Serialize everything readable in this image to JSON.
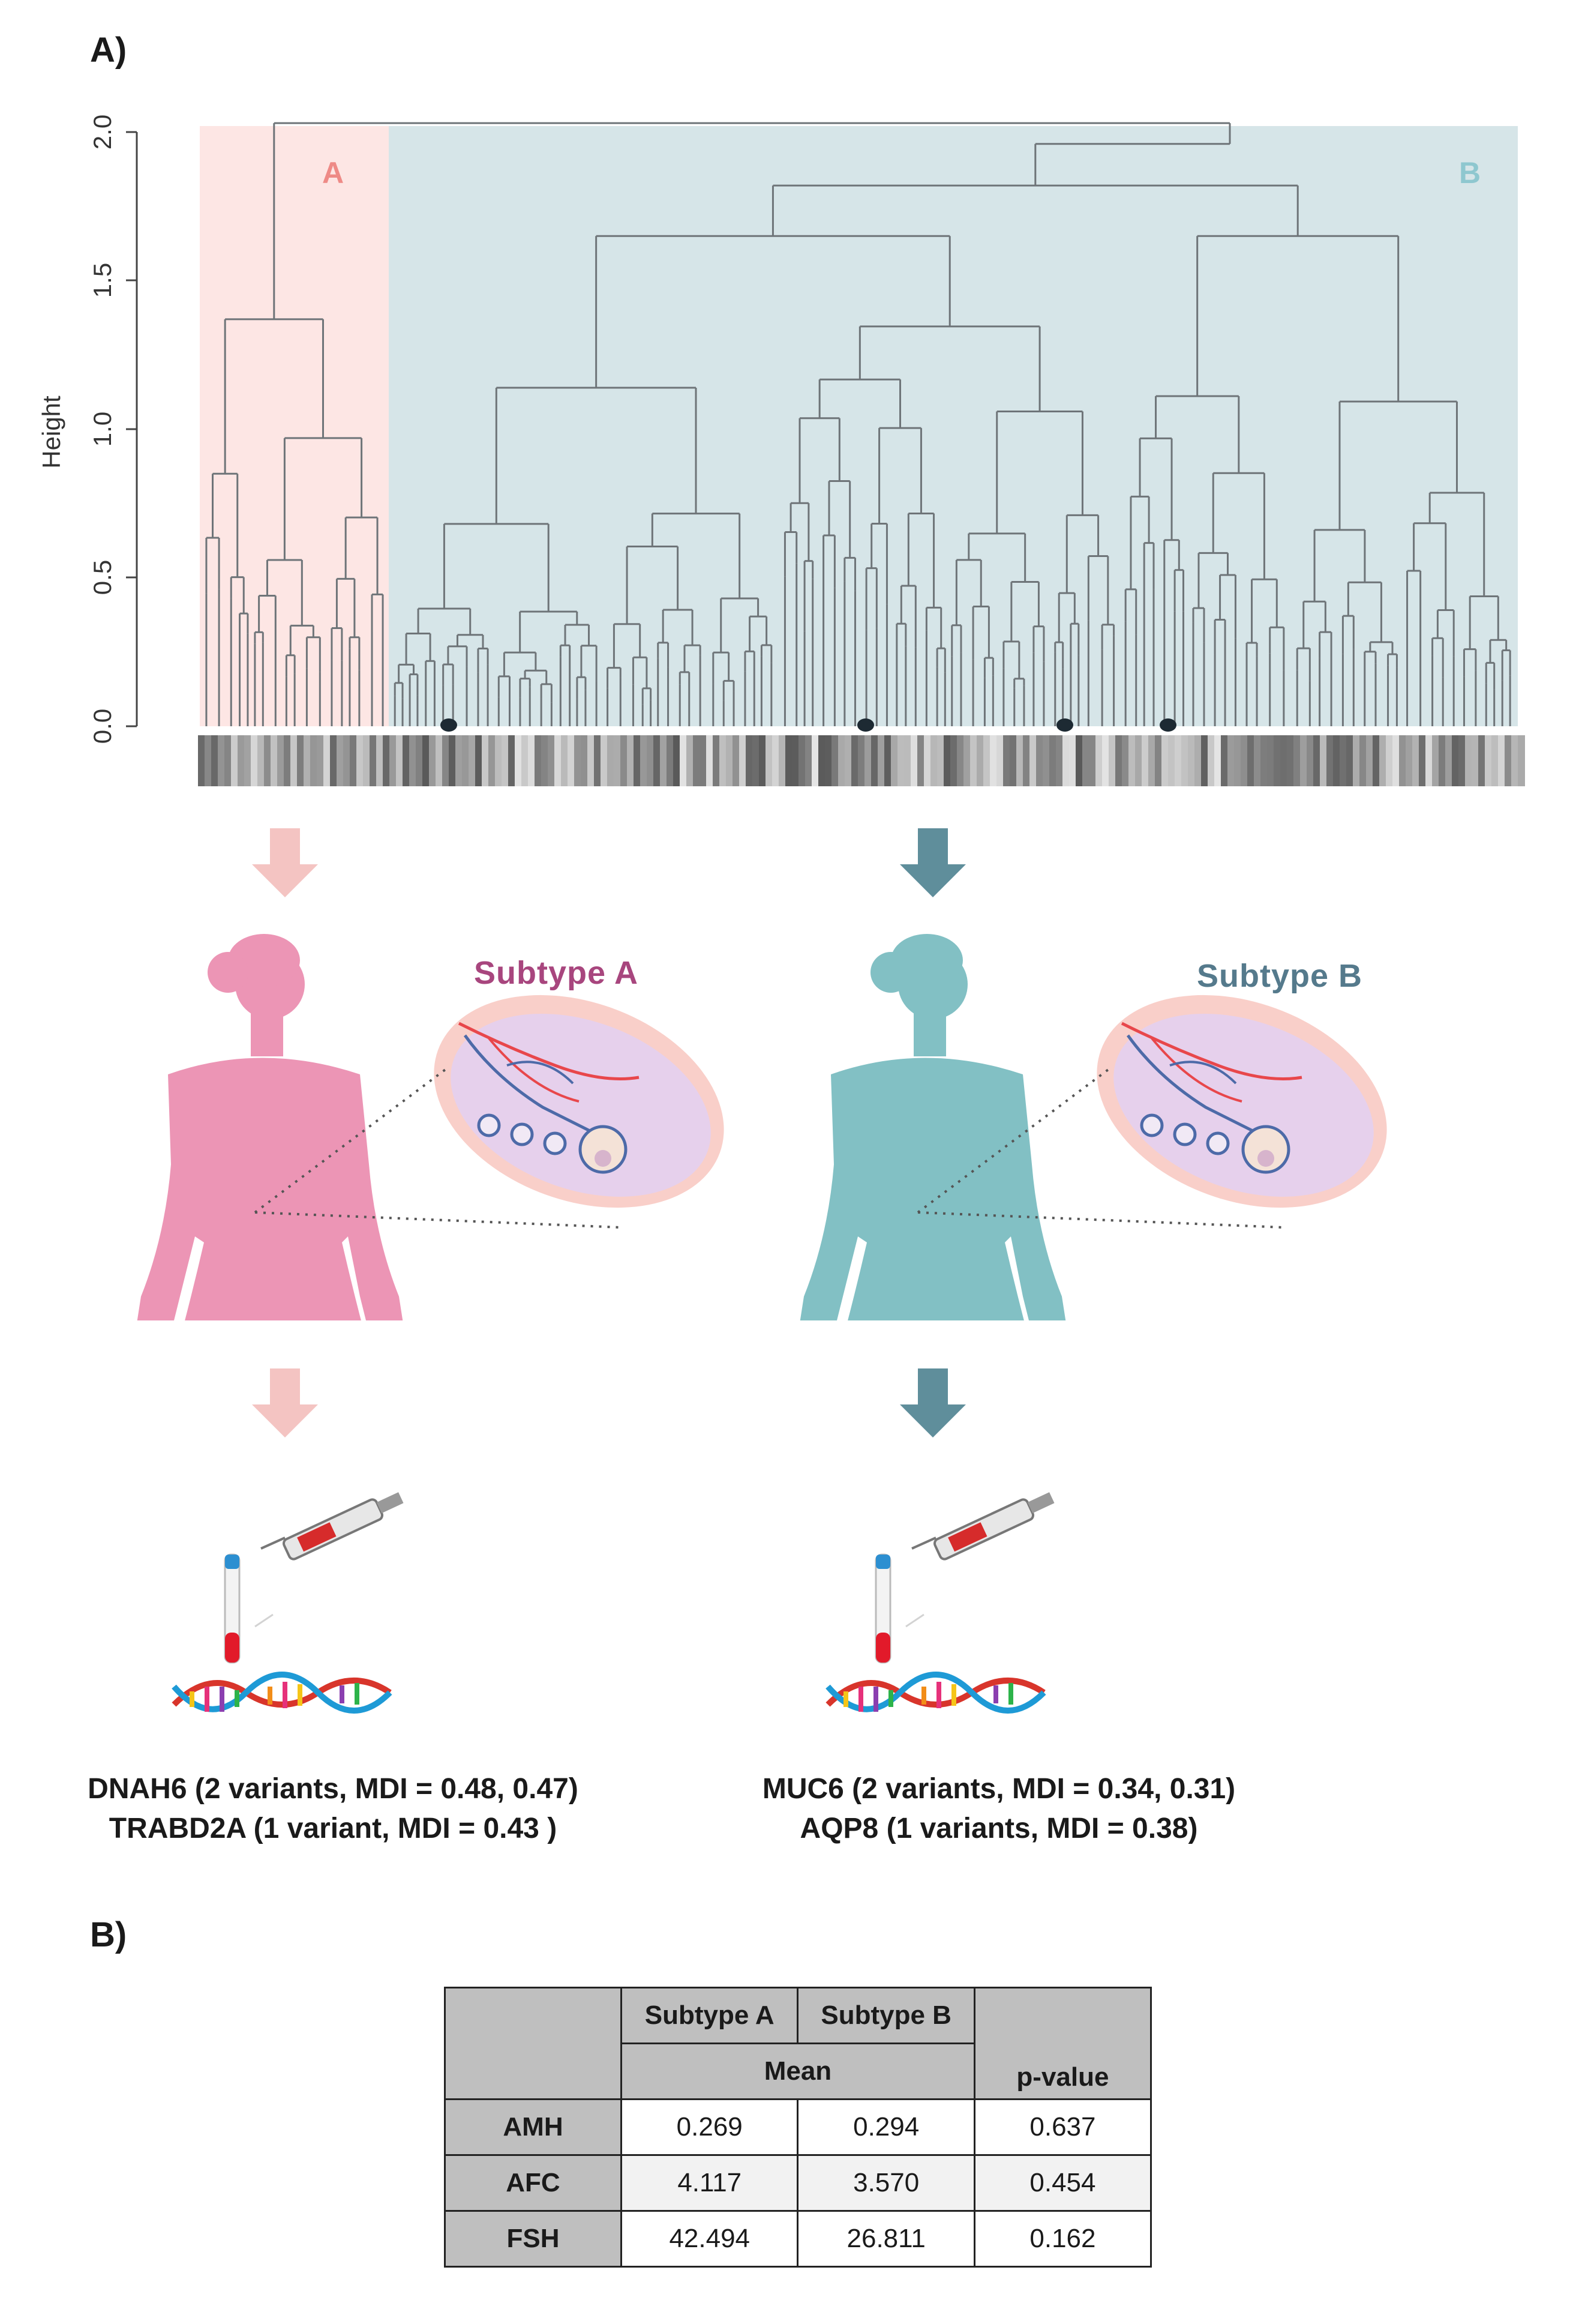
{
  "panel_a": {
    "label": "A)",
    "dendrogram": {
      "y_axis_label": "Height",
      "y_ticks": [
        "0.0",
        "0.5",
        "1.0",
        "1.5",
        "2.0"
      ],
      "cluster_a_label": "A",
      "cluster_b_label": "B",
      "colors": {
        "cluster_a_bg": "#fde6e4",
        "cluster_b_bg": "#d6e5e8",
        "cluster_a_text": "#ee8a86",
        "cluster_b_text": "#8ec7cf"
      }
    },
    "subtype_a": {
      "title": "Subtype A",
      "title_color": "#a8467e",
      "body_color": "#ec95b5",
      "arrow_color": "#f4c4c2",
      "genes_line1": "DNAH6 (2 variants, MDI = 0.48, 0.47)",
      "genes_line2": "TRABD2A (1 variant, MDI = 0.43 )"
    },
    "subtype_b": {
      "title": "Subtype B",
      "title_color": "#557a8c",
      "body_color": "#82c0c4",
      "arrow_color": "#5f8e9b",
      "genes_line1": "MUC6 (2 variants, MDI = 0.34, 0.31)",
      "genes_line2": "AQP8 (1 variants, MDI = 0.38)"
    }
  },
  "panel_b": {
    "label": "B)",
    "table": {
      "col_subtype_a": "Subtype A",
      "col_subtype_b": "Subtype B",
      "mean_label": "Mean",
      "pvalue_label": "p-value",
      "rows": [
        {
          "name": "AMH",
          "a": "0.269",
          "b": "0.294",
          "p": "0.637"
        },
        {
          "name": "AFC",
          "a": "4.117",
          "b": "3.570",
          "p": "0.454"
        },
        {
          "name": "FSH",
          "a": "42.494",
          "b": "26.811",
          "p": "0.162"
        }
      ]
    }
  }
}
